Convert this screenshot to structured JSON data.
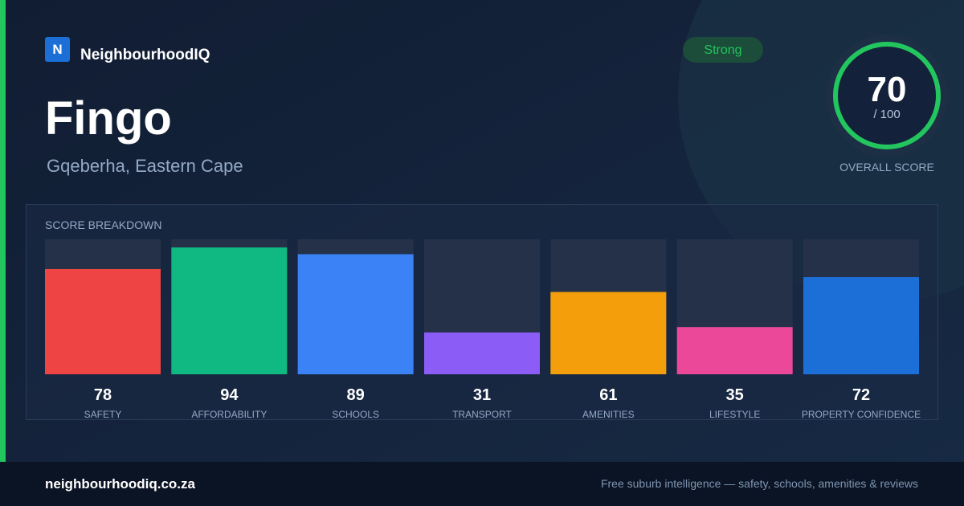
{
  "brand": {
    "logo": "N",
    "name": "NeighbourhoodIQ"
  },
  "title": "Fingo",
  "subtitle": "Gqeberha, Eastern Cape",
  "badge": "Strong",
  "overall": {
    "score": 70,
    "out_of": "/ 100",
    "label": "OVERALL SCORE"
  },
  "breakdown": {
    "type": "bar",
    "title": "SCORE BREAKDOWN",
    "ylim": [
      0,
      100
    ],
    "categories": [
      "SAFETY",
      "AFFORDABILITY",
      "SCHOOLS",
      "TRANSPORT",
      "AMENITIES",
      "LIFESTYLE",
      "PROPERTY CONFIDENCE"
    ],
    "values": [
      78,
      94,
      89,
      31,
      61,
      35,
      72
    ],
    "colors": [
      "#ef4444",
      "#10b981",
      "#3b82f6",
      "#8b5cf6",
      "#f59e0b",
      "#ec4899",
      "#1d6fd8"
    ]
  },
  "footer": {
    "url": "neighbourhoodiq.co.za",
    "tagline": "Free suburb intelligence — safety, schools, amenities & reviews"
  }
}
